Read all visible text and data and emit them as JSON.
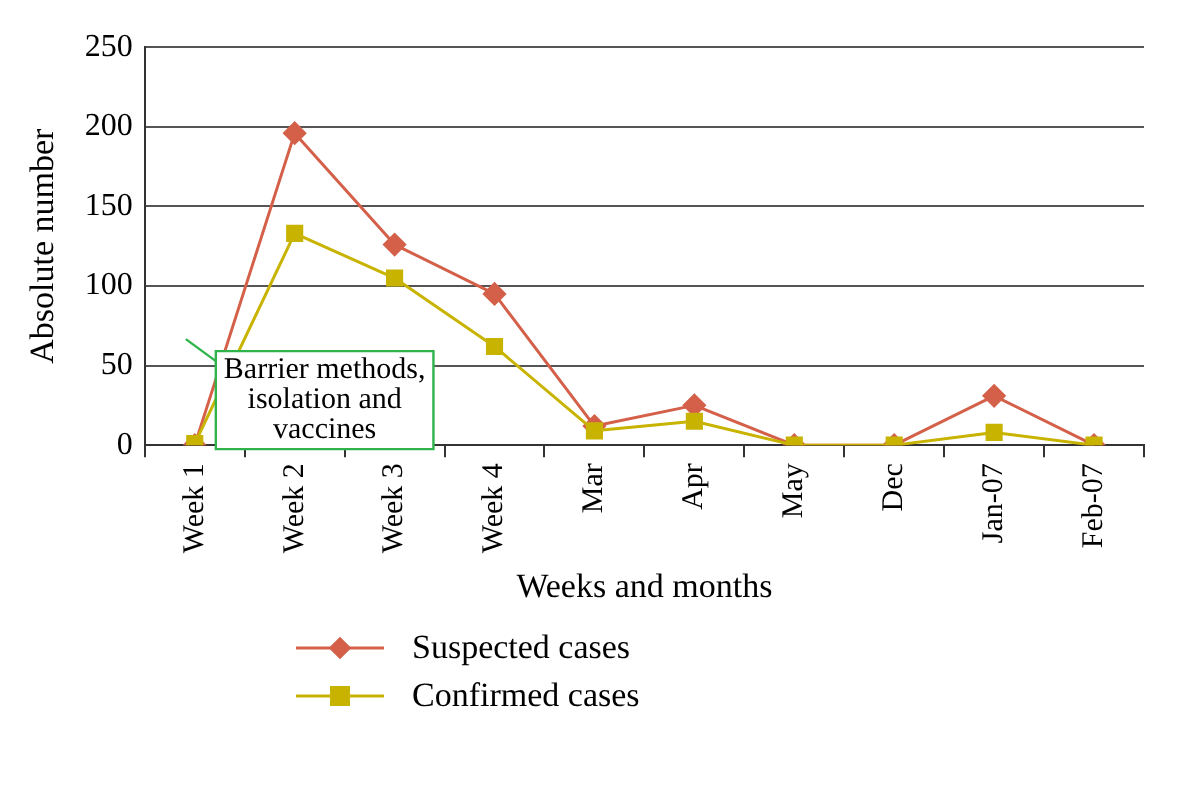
{
  "chart_data": {
    "type": "line",
    "xlabel": "Weeks and months",
    "ylabel": "Absolute number",
    "categories": [
      "Week 1",
      "Week 2",
      "Week 3",
      "Week 4",
      "Mar",
      "Apr",
      "May",
      "Dec",
      "Jan-07",
      "Feb-07"
    ],
    "series": [
      {
        "name": "Suspected cases",
        "color": "#d4604a",
        "marker": "diamond",
        "values": [
          0,
          196,
          126,
          95,
          12,
          25,
          0,
          0,
          31,
          0
        ]
      },
      {
        "name": "Confirmed cases",
        "color": "#c8b400",
        "marker": "square",
        "values": [
          1,
          133,
          105,
          62,
          9,
          15,
          0,
          0,
          8,
          0
        ]
      }
    ],
    "ylim": [
      0,
      250
    ],
    "yticks": [
      0,
      50,
      100,
      150,
      200,
      250
    ],
    "grid": "y",
    "legend": "bottom",
    "annotations": [
      "Barrier methods,\nisolation and\nvaccines"
    ]
  }
}
